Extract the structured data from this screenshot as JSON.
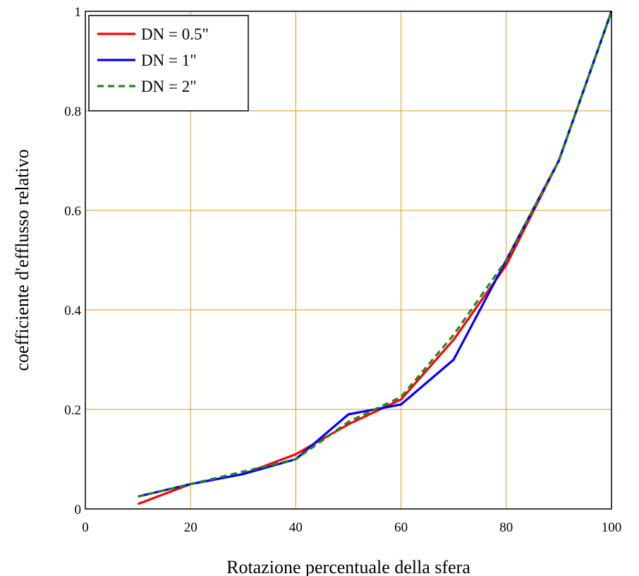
{
  "chart_data": {
    "type": "line",
    "title": "",
    "xlabel": "Rotazione percentuale della sfera",
    "ylabel": "coefficiente d'efflusso relativo",
    "xlim": [
      0,
      100
    ],
    "ylim": [
      0,
      1
    ],
    "x_ticks": [
      0,
      20,
      40,
      60,
      80,
      100
    ],
    "y_ticks": [
      0,
      0.2,
      0.4,
      0.6,
      0.8,
      1
    ],
    "x_tick_labels": [
      "0",
      "20",
      "40",
      "60",
      "80",
      "100"
    ],
    "y_tick_labels": [
      "0",
      "0.2",
      "0.4",
      "0.6",
      "0.8",
      "1"
    ],
    "grid": true,
    "grid_color": "#e8941a",
    "legend_position": "top-left",
    "series": [
      {
        "name": "DN = 0.5\"",
        "color": "#ff0000",
        "dash": "solid",
        "x": [
          10,
          20,
          30,
          40,
          50,
          60,
          70,
          80,
          90,
          100
        ],
        "y": [
          0.01,
          0.05,
          0.07,
          0.11,
          0.17,
          0.22,
          0.34,
          0.49,
          0.7,
          1.0
        ]
      },
      {
        "name": "DN = 1\"",
        "color": "#0000ff",
        "dash": "solid",
        "x": [
          10,
          20,
          30,
          40,
          50,
          60,
          70,
          80,
          90,
          100
        ],
        "y": [
          0.025,
          0.05,
          0.07,
          0.1,
          0.19,
          0.21,
          0.3,
          0.5,
          0.7,
          1.0
        ]
      },
      {
        "name": "DN = 2\"",
        "color": "#1a8a1a",
        "dash": "dashed",
        "x": [
          10,
          20,
          30,
          40,
          50,
          60,
          70,
          80,
          90,
          100
        ],
        "y": [
          0.025,
          0.05,
          0.075,
          0.1,
          0.175,
          0.225,
          0.35,
          0.5,
          0.7,
          1.0
        ]
      }
    ]
  }
}
